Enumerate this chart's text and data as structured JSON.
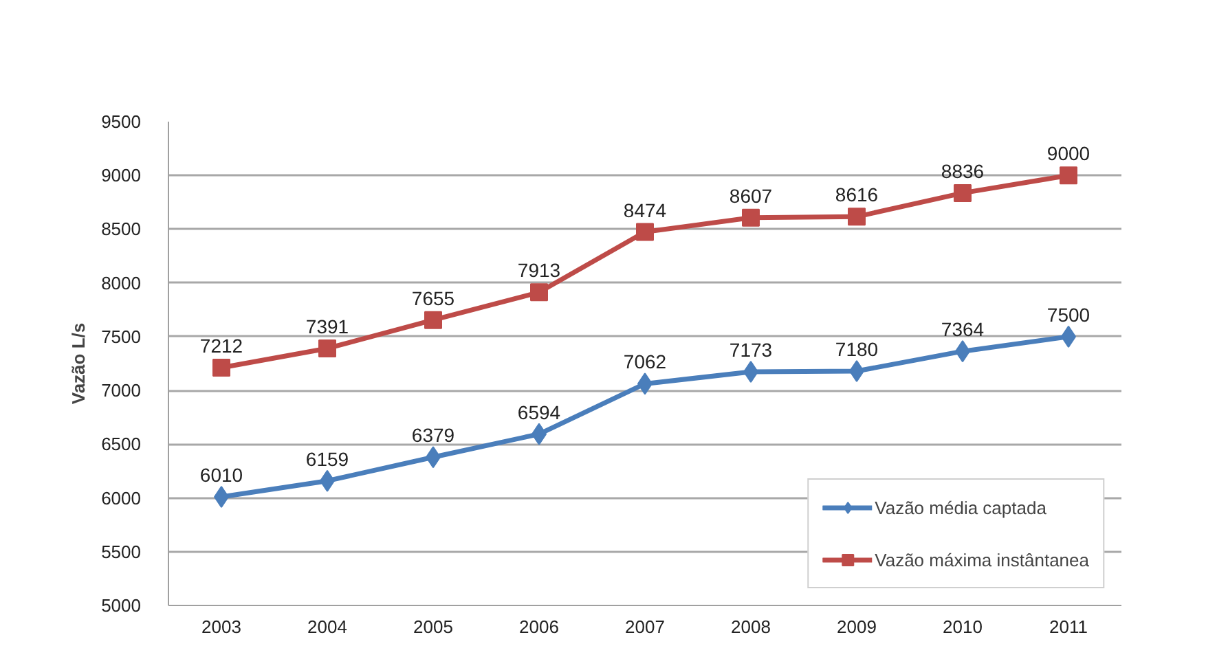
{
  "chart_data": {
    "type": "line",
    "ylabel": "Vazão L/s",
    "categories": [
      "2003",
      "2004",
      "2005",
      "2006",
      "2007",
      "2008",
      "2009",
      "2010",
      "2011"
    ],
    "series": [
      {
        "name": "Vazão média captada",
        "color": "#4a7ebb",
        "marker": "diamond",
        "values": [
          6010,
          6159,
          6379,
          6594,
          7062,
          7173,
          7180,
          7364,
          7500
        ]
      },
      {
        "name": "Vazão máxima instântanea",
        "color": "#be4b48",
        "marker": "square",
        "values": [
          7212,
          7391,
          7655,
          7913,
          8474,
          8607,
          8616,
          8836,
          9000
        ]
      }
    ],
    "ylim": [
      5000,
      9500
    ],
    "yticks": [
      5000,
      5500,
      6000,
      6500,
      7000,
      7500,
      8000,
      8500,
      9000,
      9500
    ],
    "grid": "y",
    "legend": "bottom right",
    "data_labels": true,
    "line_style": "solid"
  }
}
